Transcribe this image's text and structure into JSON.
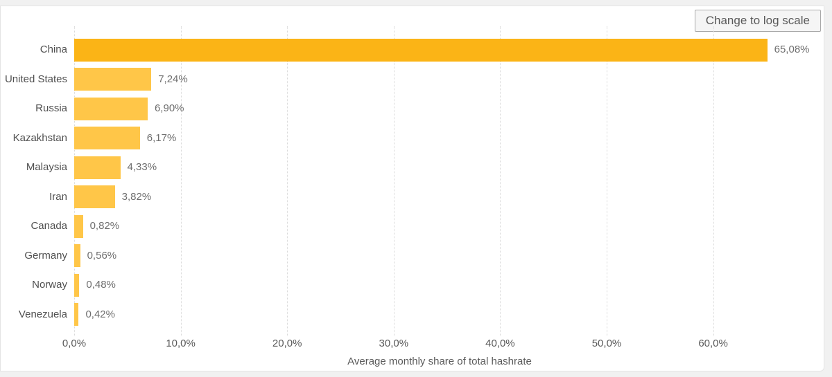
{
  "toolbar": {
    "log_scale_button_label": "Change to log scale"
  },
  "colors": {
    "bar_highlight": "#FBB416",
    "bar_normal": "#FFC648",
    "gridline": "#d9d9d9",
    "axis_text": "#595959",
    "value_text": "#6e6e6e",
    "card_background": "#ffffff",
    "page_background": "#f1f1f1"
  },
  "chart_data": {
    "type": "bar",
    "orientation": "horizontal",
    "title": "",
    "xlabel": "Average monthly share of total hashrate",
    "ylabel": "",
    "xlim": [
      0,
      70.6
    ],
    "grid": "dotted-vertical",
    "legend": "none",
    "decimal_separator": ",",
    "categories": [
      "China",
      "United States",
      "Russia",
      "Kazakhstan",
      "Malaysia",
      "Iran",
      "Canada",
      "Germany",
      "Norway",
      "Venezuela"
    ],
    "values": [
      65.08,
      7.24,
      6.9,
      6.17,
      4.33,
      3.82,
      0.82,
      0.56,
      0.48,
      0.42
    ],
    "bars": [
      {
        "category": "China",
        "value": 65.08,
        "label": "65,08%",
        "highlight": true
      },
      {
        "category": "United States",
        "value": 7.24,
        "label": "7,24%",
        "highlight": false
      },
      {
        "category": "Russia",
        "value": 6.9,
        "label": "6,90%",
        "highlight": false
      },
      {
        "category": "Kazakhstan",
        "value": 6.17,
        "label": "6,17%",
        "highlight": false
      },
      {
        "category": "Malaysia",
        "value": 4.33,
        "label": "4,33%",
        "highlight": false
      },
      {
        "category": "Iran",
        "value": 3.82,
        "label": "3,82%",
        "highlight": false
      },
      {
        "category": "Canada",
        "value": 0.82,
        "label": "0,82%",
        "highlight": false
      },
      {
        "category": "Germany",
        "value": 0.56,
        "label": "0,56%",
        "highlight": false
      },
      {
        "category": "Norway",
        "value": 0.48,
        "label": "0,48%",
        "highlight": false
      },
      {
        "category": "Venezuela",
        "value": 0.42,
        "label": "0,42%",
        "highlight": false
      }
    ],
    "x_ticks": [
      {
        "value": 0,
        "label": "0,0%"
      },
      {
        "value": 10,
        "label": "10,0%"
      },
      {
        "value": 20,
        "label": "20,0%"
      },
      {
        "value": 30,
        "label": "30,0%"
      },
      {
        "value": 40,
        "label": "40,0%"
      },
      {
        "value": 50,
        "label": "50,0%"
      },
      {
        "value": 60,
        "label": "60,0%"
      }
    ]
  }
}
